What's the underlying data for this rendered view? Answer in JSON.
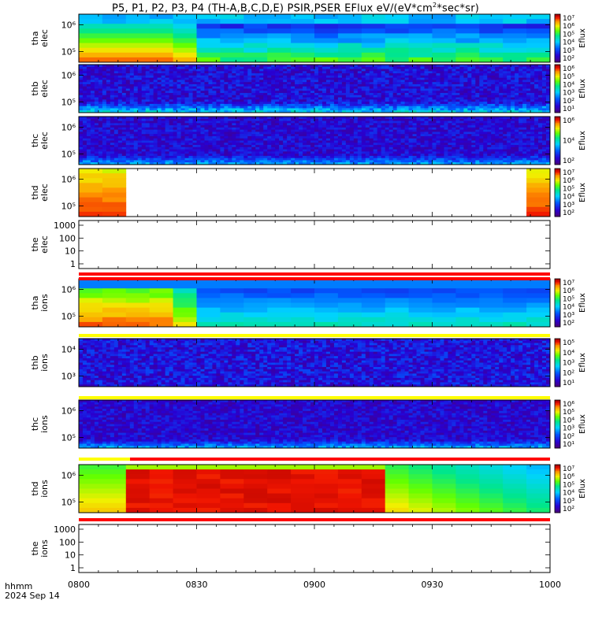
{
  "title": {
    "main": "P5, P1, P2, P3, P4 (TH-A,B,C,D,E) PSIR,PSER EFlux eV/(eV*cm",
    "sup": "2",
    "tail": "*sec*sr)"
  },
  "footer": {
    "units": "hhmm",
    "date": "2024 Sep 14"
  },
  "chart_data": {
    "type": "heatmap",
    "x_ticks": [
      "0800",
      "0830",
      "0900",
      "0930",
      "1000"
    ],
    "x_range": [
      "0800",
      "1000"
    ],
    "panels": [
      {
        "label": [
          "tha",
          "elec"
        ],
        "kind": "spec",
        "yticks": [
          "10⁵",
          "10⁶"
        ],
        "colorbar": {
          "label": "Eflux",
          "ticks": [
            "10⁷",
            "10⁶",
            "10⁵",
            "10⁴",
            "10³",
            "10²"
          ]
        }
      },
      {
        "label": [
          "thb",
          "elec"
        ],
        "kind": "spec",
        "yticks": [
          "10⁵",
          "10⁶"
        ],
        "colorbar": {
          "label": "Eflux",
          "ticks": [
            "10⁶",
            "10⁵",
            "10⁴",
            "10³",
            "10²",
            "10¹"
          ]
        }
      },
      {
        "label": [
          "thc",
          "elec"
        ],
        "kind": "spec",
        "yticks": [
          "10⁵",
          "10⁶"
        ],
        "colorbar": {
          "label": "Eflux",
          "ticks": [
            "10⁶",
            "10⁴",
            "10²"
          ]
        }
      },
      {
        "label": [
          "thd",
          "elec"
        ],
        "kind": "spec",
        "yticks": [
          "10⁵",
          "10⁶"
        ],
        "colorbar": {
          "label": "Eflux",
          "ticks": [
            "10⁷",
            "10⁶",
            "10⁵",
            "10⁴",
            "10³",
            "10²"
          ]
        }
      },
      {
        "label": [
          "the",
          "elec"
        ],
        "kind": "empty",
        "yticks": [
          "1",
          "10",
          "100",
          "1000"
        ]
      },
      {
        "label": [
          "tha",
          "ions"
        ],
        "kind": "spec",
        "yticks": [
          "10⁵",
          "10⁶"
        ],
        "colorbar": {
          "label": "Eflux",
          "ticks": [
            "10⁷",
            "10⁶",
            "10⁵",
            "10⁴",
            "10³",
            "10²"
          ]
        }
      },
      {
        "label": [
          "thb",
          "ions"
        ],
        "kind": "spec",
        "yticks": [
          "10³",
          "10⁴"
        ],
        "colorbar": {
          "label": "Eflux",
          "ticks": [
            "10⁵",
            "10⁴",
            "10³",
            "10²",
            "10¹"
          ]
        }
      },
      {
        "label": [
          "thc",
          "ions"
        ],
        "kind": "spec",
        "yticks": [
          "10⁵",
          "10⁶"
        ],
        "colorbar": {
          "label": "Eflux",
          "ticks": [
            "10⁶",
            "10⁵",
            "10⁴",
            "10³",
            "10²",
            "10¹"
          ]
        }
      },
      {
        "label": [
          "thd",
          "ions"
        ],
        "kind": "spec",
        "yticks": [
          "10⁵",
          "10⁶"
        ],
        "colorbar": {
          "label": "Eflux",
          "ticks": [
            "10⁷",
            "10⁶",
            "10⁵",
            "10⁴",
            "10³",
            "10²"
          ]
        }
      },
      {
        "label": [
          "the",
          "ions"
        ],
        "kind": "empty",
        "yticks": [
          "1",
          "10",
          "100",
          "1000"
        ]
      }
    ]
  }
}
